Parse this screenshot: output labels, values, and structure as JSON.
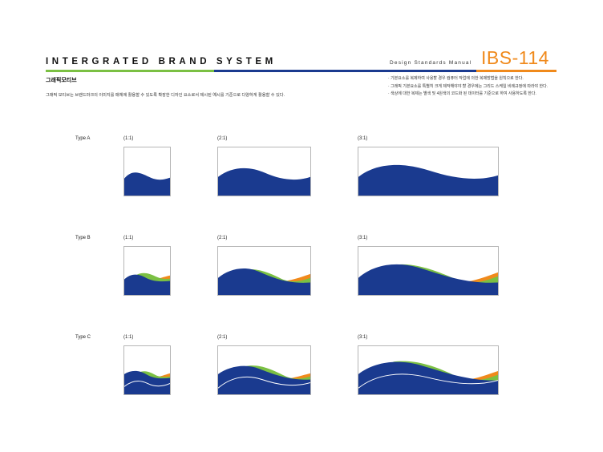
{
  "header": {
    "brand_title": "INTERGRATED BRAND SYSTEM",
    "manual_label": "Design Standards Manual",
    "doc_code": "IBS-114"
  },
  "section": {
    "title": "그래픽모티브",
    "description": "그래픽 모티브는 브랜드마크의 이미지를 매체에 활용할 수 있도록 확장한 디자인 요소로서 제시된 예시를 기준으로 다양하게 활용할 수 있다."
  },
  "notes": [
    "· 기본요소를 복제하여 사용할 경우 컴퓨터 작업에 의한 복제방법을 원칙으로 한다.",
    "· 그래픽 기본요소를 특별히 크게 제작해야야 할 경우에는 그리드 스케일 비례규정에 따라야 한다.",
    "· 색상에 대한 복제는 별색 및 4원색의 코드화 된 데이터를 기준으로 하여 사용하도록 한다."
  ],
  "rows": [
    {
      "label": "Type A",
      "ratios": [
        "(1:1)",
        "(2:1)",
        "(3:1)"
      ]
    },
    {
      "label": "Type B",
      "ratios": [
        "(1:1)",
        "(2:1)",
        "(3:1)"
      ]
    },
    {
      "label": "Type C",
      "ratios": [
        "(1:1)",
        "(2:1)",
        "(3:1)"
      ]
    }
  ],
  "colors": {
    "blue": "#1a3a8f",
    "green": "#7bc043",
    "orange": "#f08a1c",
    "border": "#b5b5b5"
  }
}
